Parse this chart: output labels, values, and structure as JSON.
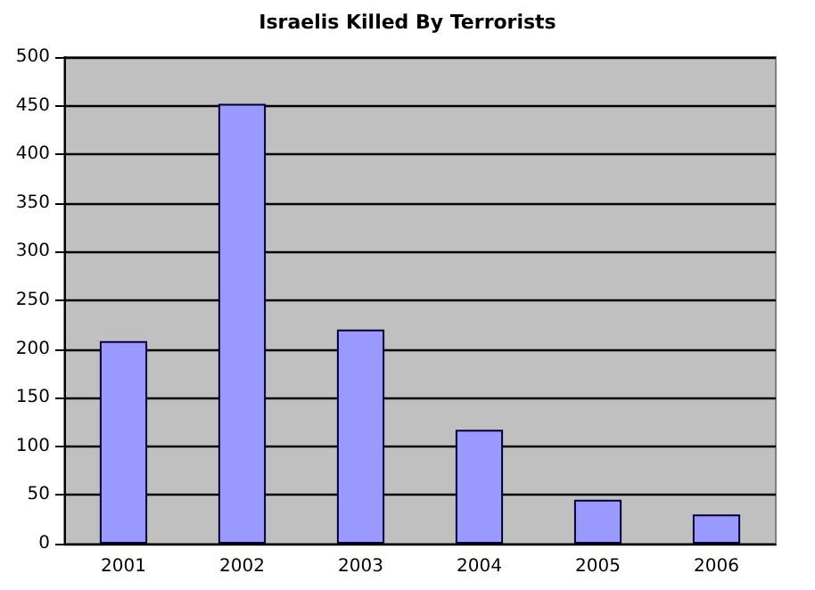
{
  "chart_data": {
    "type": "bar",
    "title": "Israelis Killed By Terrorists",
    "categories": [
      "2001",
      "2002",
      "2003",
      "2004",
      "2005",
      "2006"
    ],
    "values": [
      208,
      452,
      220,
      117,
      45,
      30
    ],
    "color": "#9999ff",
    "ylim": [
      0,
      500
    ],
    "yticks": [
      0,
      50,
      100,
      150,
      200,
      250,
      300,
      350,
      400,
      450,
      500
    ],
    "grid": "y"
  }
}
